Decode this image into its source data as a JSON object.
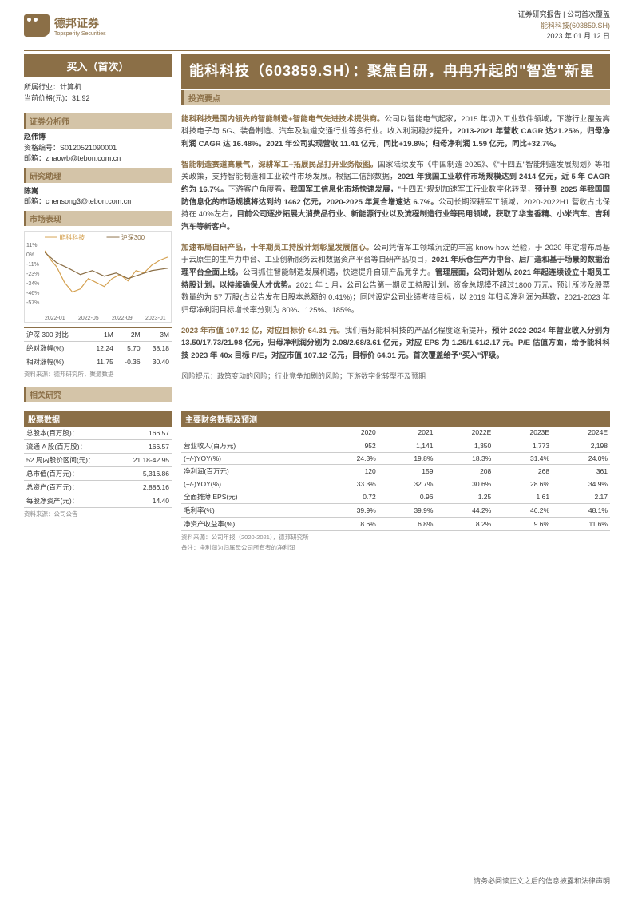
{
  "header": {
    "company_cn": "德邦证券",
    "company_en": "Topsperity Securities",
    "line1": "证券研究报告 | 公司首次覆盖",
    "line2": "能科科技(603859.SH)",
    "date": "2023 年 01 月 12 日"
  },
  "rating": "买入（首次）",
  "basic": {
    "industry_label": "所属行业：",
    "industry": "计算机",
    "price_label": "当前价格(元)：",
    "price": "31.92"
  },
  "analyst_section": "证券分析师",
  "analyst": {
    "name": "赵伟博",
    "cert_label": "资格编号：",
    "cert": "S0120521090001",
    "email_label": "邮箱：",
    "email": "zhaowb@tebon.com.cn"
  },
  "assistant_section": "研究助理",
  "assistant": {
    "name": "陈嵩",
    "email_label": "邮箱：",
    "email": "chensong3@tebon.com.cn"
  },
  "market_section": "市场表现",
  "chart": {
    "legend1": "能科科技",
    "legend2": "沪深300",
    "y_labels": [
      "11%",
      "0%",
      "-11%",
      "-23%",
      "-34%",
      "-46%",
      "-57%"
    ],
    "x_labels": [
      "2022-01",
      "2022-05",
      "2022-09",
      "2023-01"
    ],
    "line1_color": "#d4a04f",
    "line2_color": "#8b6f47",
    "line1_path": "M0,10 L8,22 L15,30 L25,50 L35,62 L45,58 L55,45 L65,50 L75,55 L85,45 L95,40 L105,48 L115,35 L125,38 L135,28 L145,22 L155,18",
    "line2_path": "M0,12 L15,25 L30,32 L45,40 L60,35 L75,42 L90,38 L105,45 L120,40 L135,35 L155,32"
  },
  "perf": {
    "header": [
      "沪深 300 对比",
      "1M",
      "2M",
      "3M"
    ],
    "rows": [
      [
        "绝对涨幅(%)",
        "12.24",
        "5.70",
        "38.18"
      ],
      [
        "相对涨幅(%)",
        "11.75",
        "-0.36",
        "30.40"
      ]
    ],
    "src": "资料来源：德邦研究所，聚源数据"
  },
  "related_section": "相关研究",
  "title": "能科科技（603859.SH）：聚焦自研，冉冉升起的\"智造\"新星",
  "invest_header": "投资要点",
  "paragraphs": [
    {
      "lead": "能科科技是国内领先的智能制造+智能电气先进技术提供商。",
      "text": "公司以智能电气起家，2015 年切入工业软件领域，下游行业覆盖高科技电子与 5G、装备制造、汽车及轨道交通行业等多行业。收入利润稳步提升，",
      "bold": "2013-2021 年营收 CAGR 达21.25%，归母净利润 CAGR 达 16.48%。2021 年公司实现营收 11.41 亿元，同比+19.8%；归母净利润 1.59 亿元，同比+32.7%。"
    },
    {
      "lead": "智能制造赛道高景气，深耕军工+拓展民品打开业务版图。",
      "text": "国家陆续发布《中国制造 2025》、《\"十四五\"智能制造发展规划》等相关政策，支持智能制造和工业软件市场发展。根据工信部数据，",
      "bold": "2021 年我国工业软件市场规模达到 2414 亿元，近 5 年 CAGR 约为 16.7%。",
      "text2": "下游客户角度看，",
      "bold2": "我国军工信息化市场快速发展，",
      "text3": "\"十四五\"规划加速军工行业数字化转型，",
      "bold3": "预计到 2025 年我国国防信息化的市场规模将达到约 1462 亿元，2020-2025 年复合增速达 6.7%。",
      "text4": "公司长期深耕军工领域，2020-2022H1 营收占比保持在 40%左右，",
      "bold4": "目前公司逐步拓展大消费品行业、新能源行业以及流程制造行业等民用领域，获取了华宝香精、小米汽车、吉利汽车等新客户。"
    },
    {
      "lead": "加速布局自研产品，十年期员工持股计划彰显发展信心。",
      "text": "公司凭借军工领域沉淀的丰富 know-how 经验，于 2020 年定增布局基于云原生的生产力中台、工业创新服务云和数据资产平台等自研产品项目，",
      "bold": "2021 年乐仓生产力中台、后厂造和基于场景的数据治理平台全面上线。",
      "text2": "公司抓住智能制造发展机遇，快速提升自研产品竞争力。",
      "bold2": "管理层面，公司计划从 2021 年起连续设立十期员工持股计划，以持续确保人才优势。",
      "text3": "2021 年 1 月，公司公告第一期员工持股计划，资金总规模不超过1800 万元，预计所涉及股票数量约为 57 万股(占公告发布日股本总额的 0.41%)；同时设定公司业绩考核目标，以 2019 年归母净利润为基数，2021-2023 年归母净利润目标增长率分别为 80%、125%、185%。"
    },
    {
      "lead": "2023 年市值 107.12 亿，对应目标价 64.31 元。",
      "text": "我们看好能科科技的产品化程度逐渐提升，",
      "bold": "预计 2022-2024 年营业收入分别为 13.50/17.73/21.98 亿元，归母净利润分别为 2.08/2.68/3.61 亿元，对应 EPS 为 1.25/1.61/2.17 元。P/E 估值方面，给予能科科技 2023 年 40x 目标 P/E，对应市值 107.12 亿元，目标价 64.31 元。首次覆盖给予\"买入\"评级。"
    }
  ],
  "risk_label": "风险提示：",
  "risk": "政策变动的风险；行业竞争加剧的风险；下游数字化转型不及预期",
  "stock_data": {
    "header": "股票数据",
    "rows": [
      [
        "总股本(百万股)：",
        "166.57"
      ],
      [
        "流通 A 股(百万股)：",
        "166.57"
      ],
      [
        "52 周内股价区间(元)：",
        "21.18-42.95"
      ],
      [
        "总市值(百万元)：",
        "5,316.86"
      ],
      [
        "总资产(百万元)：",
        "2,886.16"
      ],
      [
        "每股净资产(元)：",
        "14.40"
      ]
    ],
    "src": "资料来源：公司公告"
  },
  "fin_data": {
    "header": "主要财务数据及预测",
    "years": [
      "",
      "2020",
      "2021",
      "2022E",
      "2023E",
      "2024E"
    ],
    "rows": [
      [
        "营业收入(百万元)",
        "952",
        "1,141",
        "1,350",
        "1,773",
        "2,198"
      ],
      [
        "(+/-)YOY(%)",
        "24.3%",
        "19.8%",
        "18.3%",
        "31.4%",
        "24.0%"
      ],
      [
        "净利润(百万元)",
        "120",
        "159",
        "208",
        "268",
        "361"
      ],
      [
        "(+/-)YOY(%)",
        "33.3%",
        "32.7%",
        "30.6%",
        "28.6%",
        "34.9%"
      ],
      [
        "全面摊薄 EPS(元)",
        "0.72",
        "0.96",
        "1.25",
        "1.61",
        "2.17"
      ],
      [
        "毛利率(%)",
        "39.9%",
        "39.9%",
        "44.2%",
        "46.2%",
        "48.1%"
      ],
      [
        "净资产收益率(%)",
        "8.6%",
        "6.8%",
        "8.2%",
        "9.6%",
        "11.6%"
      ]
    ],
    "src": "资料来源：公司年报（2020-2021），德邦研究所",
    "note": "备注：净利润为归属母公司所有者的净利润"
  },
  "footer": "请务必阅读正文之后的信息披露和法律声明"
}
